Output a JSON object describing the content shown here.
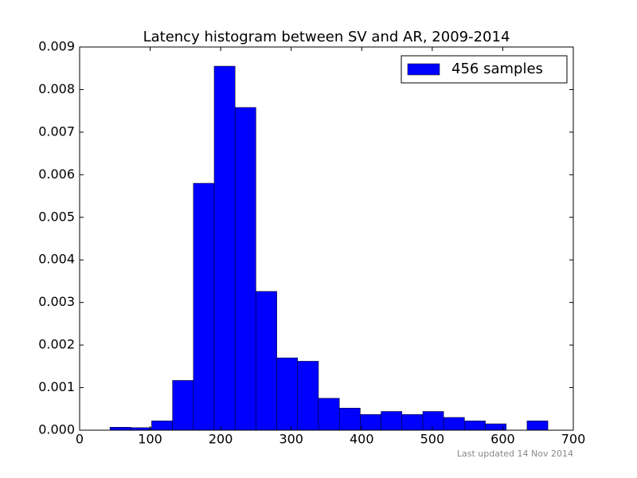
{
  "chart_data": {
    "type": "histogram",
    "title": "Latency histogram between SV and AR, 2009-2014",
    "bins": [
      43,
      72.6,
      102.1,
      131.7,
      161.3,
      190.8,
      220.4,
      250,
      279.6,
      309.1,
      338.7,
      368.3,
      397.9,
      427.4,
      457,
      486.6,
      516.1,
      545.7,
      575.3,
      604.9,
      634.4,
      664
    ],
    "series": [
      {
        "name": "456 samples",
        "color": "#0000ff",
        "values": [
          7e-05,
          6e-05,
          0.00022,
          0.00117,
          0.0058,
          0.00855,
          0.00758,
          0.00326,
          0.0017,
          0.00162,
          0.00075,
          0.00052,
          0.00037,
          0.00044,
          0.00037,
          0.00044,
          0.0003,
          0.00022,
          0.00015,
          0,
          0.00022
        ]
      }
    ],
    "xlim": [
      0,
      700
    ],
    "xticks": [
      0,
      100,
      200,
      300,
      400,
      500,
      600,
      700
    ],
    "ylim": [
      0,
      0.009
    ],
    "yticks": [
      {
        "value": 0,
        "label": "0.000"
      },
      {
        "value": 0.001,
        "label": "0.001"
      },
      {
        "value": 0.002,
        "label": "0.002"
      },
      {
        "value": 0.003,
        "label": "0.003"
      },
      {
        "value": 0.004,
        "label": "0.004"
      },
      {
        "value": 0.005,
        "label": "0.005"
      },
      {
        "value": 0.006,
        "label": "0.006"
      },
      {
        "value": 0.007,
        "label": "0.007"
      },
      {
        "value": 0.008,
        "label": "0.008"
      },
      {
        "value": 0.009,
        "label": "0.009"
      }
    ],
    "legend_position": "upper right",
    "footnote": "Last updated 14 Nov 2014"
  }
}
